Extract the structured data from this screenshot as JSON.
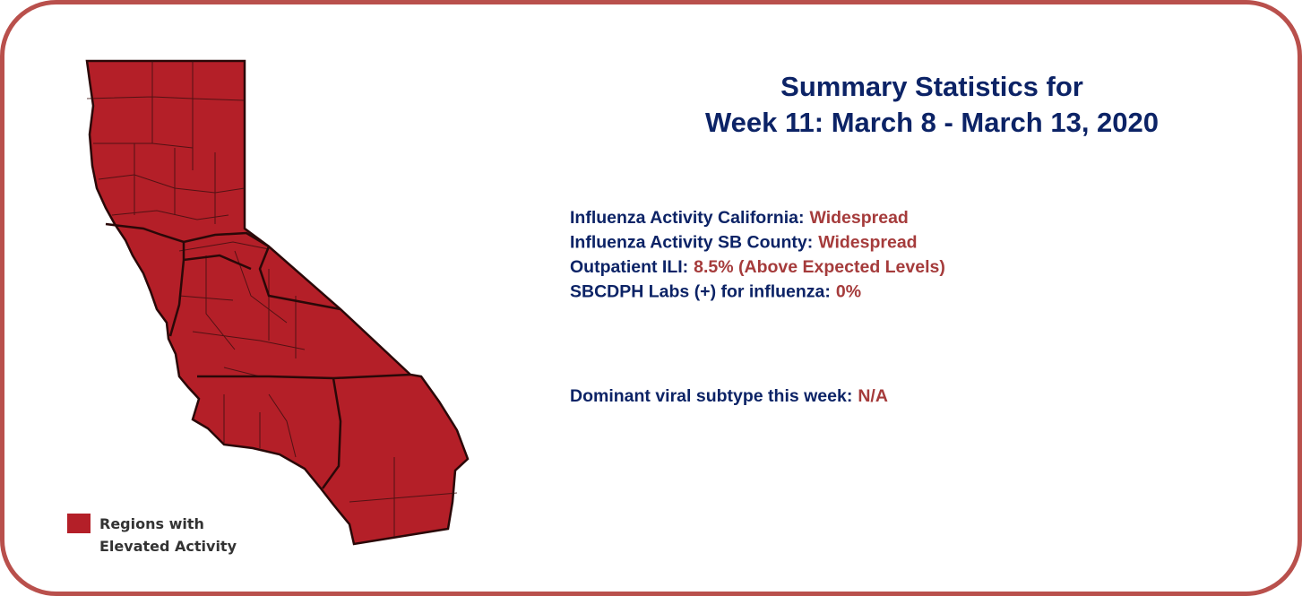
{
  "title": [
    "Summary Statistics for",
    "Week 11: March 8 - March 13, 2020"
  ],
  "legend": [
    "Regions with",
    "Elevated Activity"
  ],
  "stats": [
    {
      "label": "Influenza Activity California:",
      "value": "Widespread"
    },
    {
      "label": "Influenza Activity SB County:",
      "value": "Widespread"
    },
    {
      "label": "Outpatient ILI:",
      "value": "8.5% (Above Expected Levels)"
    },
    {
      "label": "SBCDPH Labs (+) for influenza:",
      "value": "0%"
    }
  ],
  "dominant": {
    "label": "Dominant viral subtype this week:",
    "value": "N/A"
  }
}
